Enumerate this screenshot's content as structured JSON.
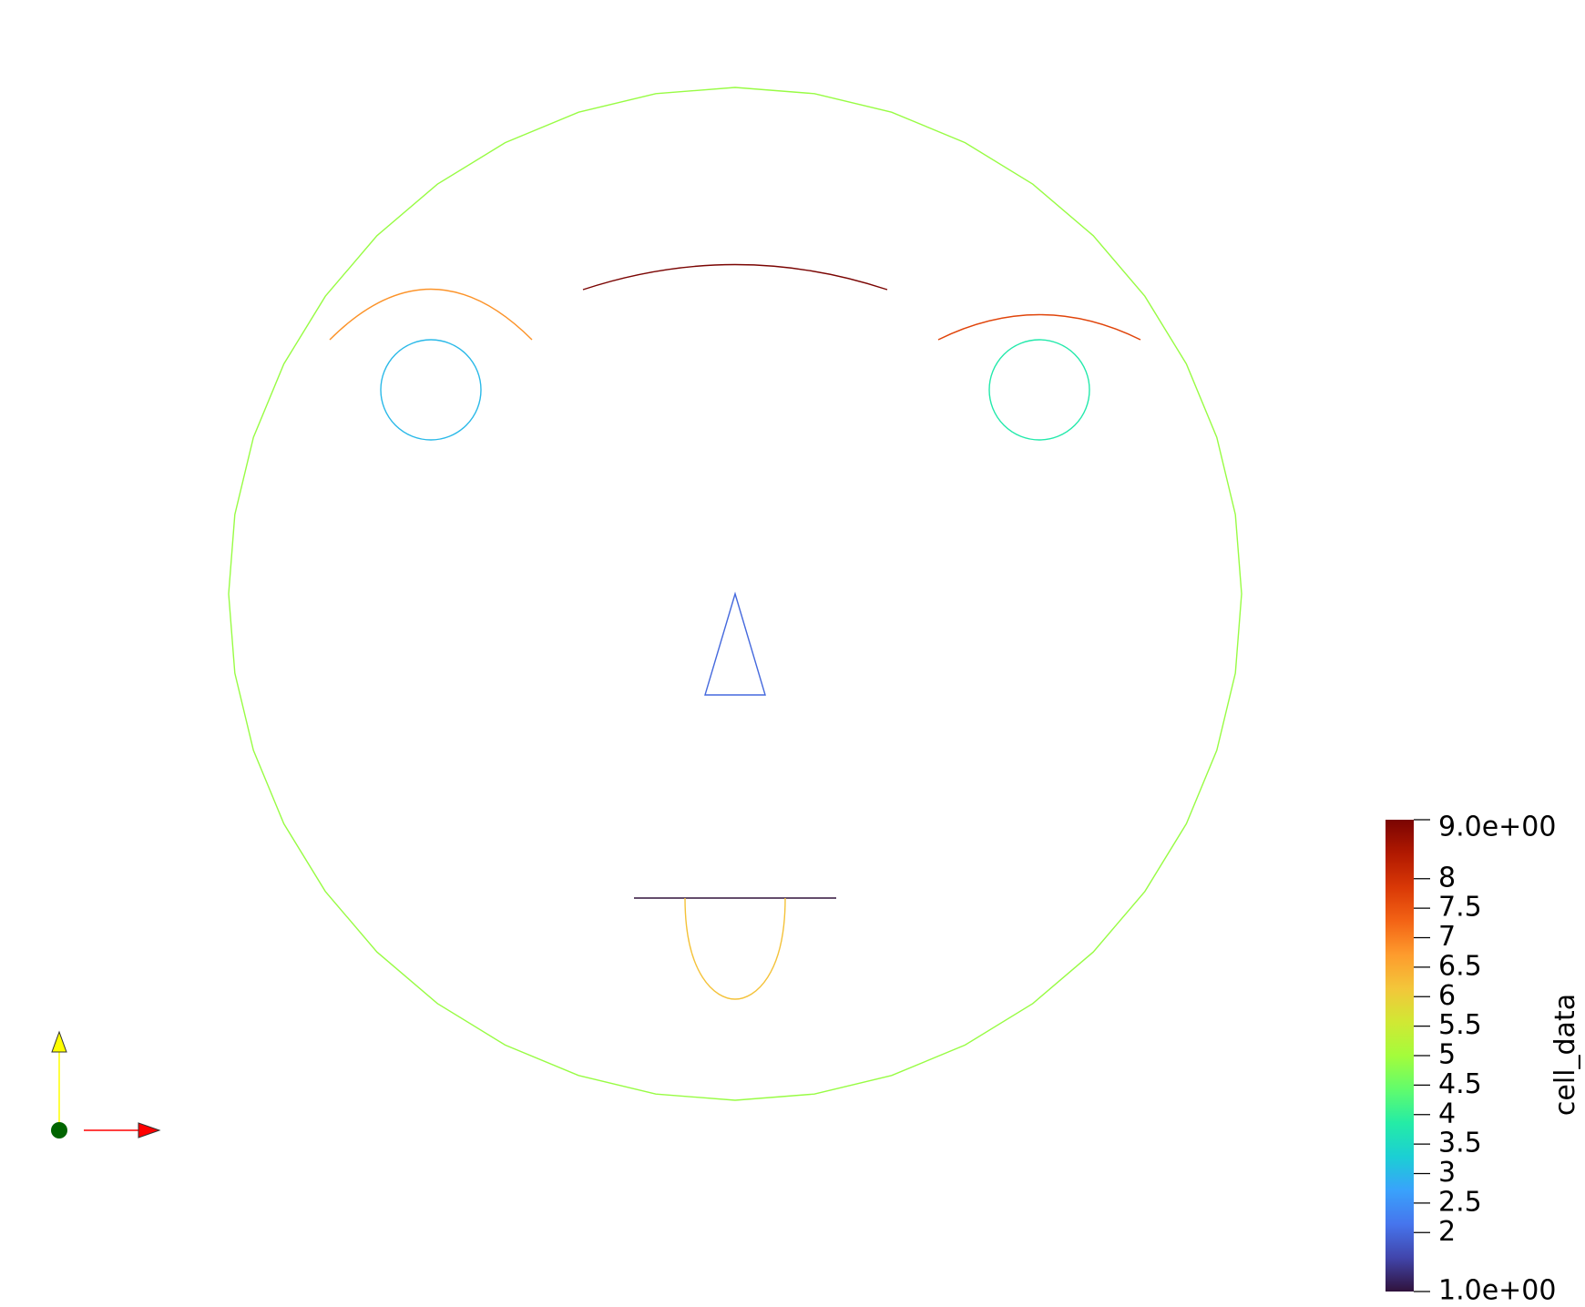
{
  "scene": {
    "background": "#ffffff",
    "face_outline": {
      "kind": "circle",
      "cell_value": 4.9
    },
    "left_eyebrow": {
      "kind": "arc",
      "cell_value": 6.8
    },
    "middle_brow": {
      "kind": "arc",
      "cell_value": 9.0
    },
    "right_eyebrow": {
      "kind": "arc",
      "cell_value": 7.7
    },
    "left_eye": {
      "kind": "circle",
      "cell_value": 3.0
    },
    "right_eye": {
      "kind": "circle",
      "cell_value": 3.8
    },
    "nose": {
      "kind": "triangle",
      "cell_value": 2.0
    },
    "mouth_line": {
      "kind": "line",
      "cell_value": 1.0
    },
    "tongue": {
      "kind": "arc",
      "cell_value": 6.2
    }
  },
  "axes_triad": {
    "y_axis_color": "#ffff00",
    "x_axis_color": "#ff0000",
    "z_axis_color": "#006400"
  },
  "color_bar": {
    "title": "cell_data",
    "range": [
      1.0,
      9.0
    ],
    "max_label": "9.0e+00",
    "min_label": "1.0e+00",
    "ticks": [
      {
        "value": 8,
        "label": "8"
      },
      {
        "value": 7.5,
        "label": "7.5"
      },
      {
        "value": 7,
        "label": "7"
      },
      {
        "value": 6.5,
        "label": "6.5"
      },
      {
        "value": 6,
        "label": "6"
      },
      {
        "value": 5.5,
        "label": "5.5"
      },
      {
        "value": 5,
        "label": "5"
      },
      {
        "value": 4.5,
        "label": "4.5"
      },
      {
        "value": 4,
        "label": "4"
      },
      {
        "value": 3.5,
        "label": "3.5"
      },
      {
        "value": 3,
        "label": "3"
      },
      {
        "value": 2.5,
        "label": "2.5"
      },
      {
        "value": 2,
        "label": "2"
      }
    ],
    "colormap": [
      "#30123b",
      "#4145ab",
      "#4675ed",
      "#39a2fc",
      "#1bcfd4",
      "#24eca6",
      "#61fc6c",
      "#a4fc3b",
      "#d1e834",
      "#f3c63a",
      "#fe9b2d",
      "#f36315",
      "#d93806",
      "#b11901",
      "#7a0402"
    ]
  }
}
